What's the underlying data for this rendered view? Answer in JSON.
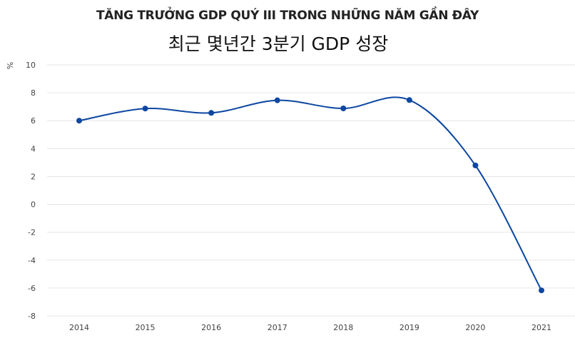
{
  "chart_data": {
    "type": "line",
    "title": "TĂNG TRƯỞNG GDP QUÝ III TRONG NHỮNG NĂM GẦN ĐÂY",
    "subtitle": "최근 몇년간 3분기 GDP 성장",
    "ylabel": "%",
    "xlabel": "",
    "categories": [
      "2014",
      "2015",
      "2016",
      "2017",
      "2018",
      "2019",
      "2020",
      "2021"
    ],
    "series": [
      {
        "values": [
          6.0,
          6.87,
          6.56,
          7.46,
          6.88,
          7.48,
          2.79,
          -6.17
        ]
      }
    ],
    "ylim": [
      -8,
      10
    ],
    "yticks": [
      10,
      8,
      6,
      4,
      2,
      0,
      -2,
      -4,
      -6,
      -8
    ],
    "grid": true,
    "smooth": true,
    "color": "#0d47a1",
    "grid_color": "#e6e6e6"
  }
}
